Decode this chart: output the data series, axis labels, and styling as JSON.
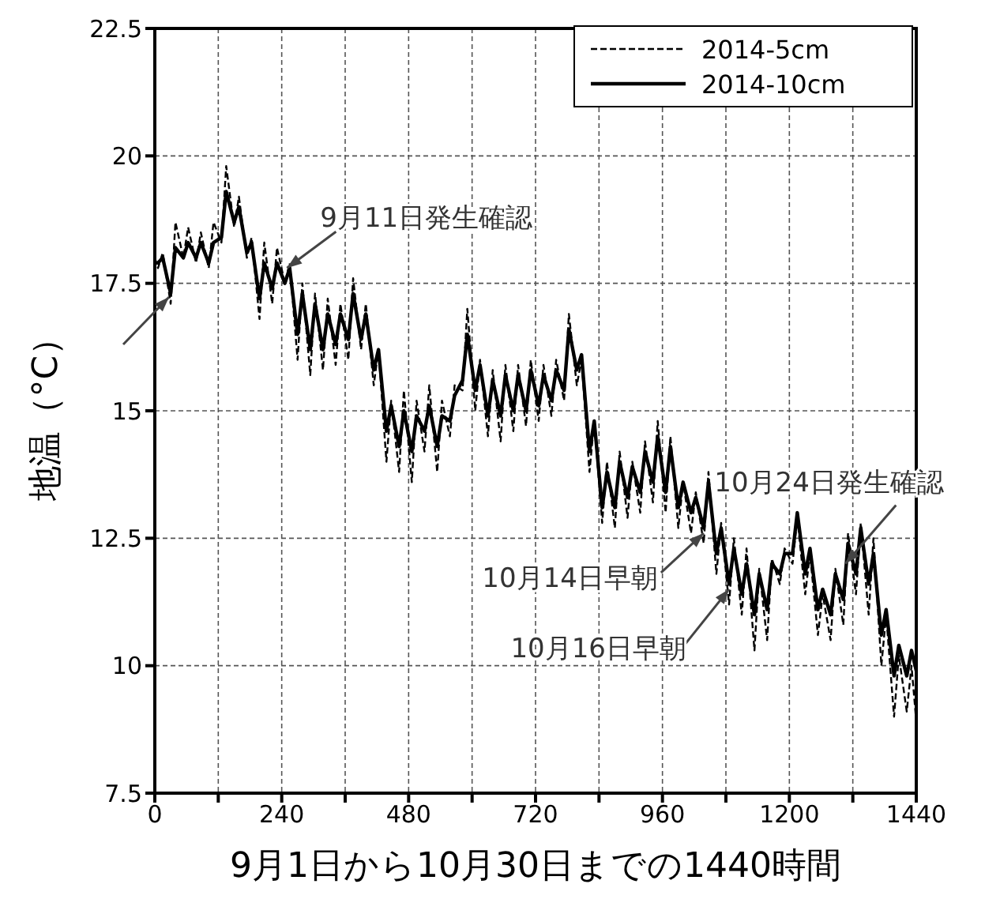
{
  "chart_data": {
    "type": "line",
    "xlabel": "9月1日から10月30日までの1440時間",
    "ylabel": "地温（°C）",
    "x": [
      0,
      6,
      15,
      30,
      39,
      54,
      63,
      78,
      87,
      102,
      111,
      126,
      135,
      150,
      159,
      174,
      183,
      198,
      207,
      222,
      231,
      246,
      255,
      270,
      279,
      294,
      303,
      318,
      327,
      342,
      351,
      366,
      375,
      390,
      399,
      414,
      423,
      438,
      447,
      462,
      471,
      486,
      495,
      510,
      519,
      534,
      543,
      558,
      567,
      582,
      591,
      606,
      615,
      630,
      639,
      654,
      663,
      678,
      687,
      702,
      711,
      726,
      735,
      750,
      759,
      774,
      783,
      798,
      807,
      822,
      831,
      846,
      855,
      870,
      879,
      894,
      903,
      918,
      927,
      942,
      951,
      966,
      975,
      990,
      999,
      1014,
      1023,
      1038,
      1047,
      1062,
      1071,
      1086,
      1095,
      1110,
      1119,
      1134,
      1143,
      1158,
      1167,
      1182,
      1191,
      1206,
      1215,
      1230,
      1239,
      1254,
      1263,
      1278,
      1287,
      1302,
      1311,
      1326,
      1335,
      1350,
      1359,
      1374,
      1383,
      1398,
      1407,
      1422,
      1431,
      1440
    ],
    "series": [
      {
        "name": "2014-5cm",
        "color": "#000000",
        "line_style": "dashed",
        "values": [
          18.0,
          17.8,
          18.1,
          17.1,
          18.7,
          18.0,
          18.6,
          17.9,
          18.5,
          17.8,
          18.7,
          18.3,
          19.8,
          18.6,
          19.2,
          18.0,
          18.4,
          16.8,
          18.3,
          17.1,
          18.2,
          17.5,
          17.9,
          16.0,
          17.5,
          15.7,
          17.3,
          15.8,
          17.2,
          15.9,
          17.1,
          16.0,
          17.6,
          16.2,
          17.1,
          15.5,
          16.2,
          14.0,
          15.2,
          13.8,
          15.4,
          13.6,
          15.2,
          14.2,
          15.5,
          13.8,
          15.2,
          14.5,
          15.5,
          15.4,
          17.0,
          15.0,
          16.0,
          14.5,
          15.8,
          14.4,
          15.9,
          14.6,
          15.9,
          14.7,
          16.0,
          14.8,
          15.9,
          14.9,
          16.0,
          15.2,
          16.9,
          15.5,
          16.0,
          13.8,
          14.8,
          12.8,
          14.0,
          12.7,
          14.2,
          12.9,
          14.0,
          13.0,
          14.4,
          13.2,
          14.8,
          13.0,
          14.5,
          12.7,
          13.6,
          12.6,
          13.4,
          12.4,
          13.8,
          11.8,
          12.8,
          11.2,
          12.5,
          11.0,
          12.3,
          10.3,
          11.9,
          10.5,
          12.1,
          11.6,
          12.3,
          12.0,
          12.9,
          11.4,
          12.2,
          10.6,
          11.4,
          10.5,
          11.9,
          10.8,
          12.6,
          11.4,
          12.8,
          11.0,
          12.5,
          10.0,
          11.0,
          9.0,
          10.2,
          9.1,
          10.0,
          8.9
        ]
      },
      {
        "name": "2014-10cm",
        "color": "#000000",
        "line_style": "solid",
        "values": [
          17.9,
          17.9,
          18.0,
          17.3,
          18.2,
          18.0,
          18.3,
          18.0,
          18.3,
          17.9,
          18.3,
          18.4,
          19.3,
          18.7,
          19.0,
          18.1,
          18.3,
          17.2,
          17.9,
          17.4,
          17.9,
          17.5,
          17.8,
          16.5,
          17.3,
          16.2,
          17.1,
          16.2,
          16.9,
          16.3,
          16.9,
          16.4,
          17.3,
          16.4,
          16.9,
          15.8,
          16.2,
          14.6,
          15.1,
          14.3,
          15.0,
          14.2,
          14.9,
          14.6,
          15.1,
          14.3,
          14.9,
          14.8,
          15.3,
          15.6,
          16.5,
          15.4,
          15.9,
          14.9,
          15.6,
          14.9,
          15.7,
          15.0,
          15.7,
          15.0,
          15.8,
          15.1,
          15.7,
          15.2,
          15.8,
          15.4,
          16.6,
          15.8,
          16.1,
          14.2,
          14.8,
          13.1,
          13.8,
          13.1,
          14.0,
          13.3,
          13.9,
          13.4,
          14.2,
          13.6,
          14.5,
          13.4,
          14.3,
          13.1,
          13.6,
          13.0,
          13.3,
          12.7,
          13.6,
          12.2,
          12.7,
          11.6,
          12.3,
          11.4,
          12.0,
          11.0,
          11.8,
          11.1,
          12.0,
          11.8,
          12.2,
          12.2,
          13.0,
          11.8,
          12.3,
          11.1,
          11.5,
          11.0,
          11.8,
          11.3,
          12.4,
          11.8,
          12.7,
          11.6,
          12.2,
          10.6,
          11.1,
          9.8,
          10.4,
          9.8,
          10.3,
          9.9
        ]
      }
    ],
    "xlim": [
      0,
      1440
    ],
    "xticks": [
      0,
      {
        "value": 120,
        "label": null
      },
      240,
      {
        "value": 360,
        "label": null
      },
      480,
      {
        "value": 600,
        "label": null
      },
      720,
      {
        "value": 840,
        "label": null
      },
      960,
      {
        "value": 1080,
        "label": null
      },
      1200,
      {
        "value": 1320,
        "label": null
      },
      1440
    ],
    "ylim": [
      7.5,
      22.5
    ],
    "yticks": [
      7.5,
      10,
      12.5,
      15,
      17.5,
      20,
      22.5
    ],
    "grid": true,
    "legend": "top right",
    "marker": "none",
    "annotations": [
      {
        "text": "9月11日発生確認",
        "x": 250,
        "y": 17.8
      },
      {
        "text": "10月14日早朝",
        "x": 1038,
        "y": 12.6
      },
      {
        "text": "10月16日早朝",
        "x": 1086,
        "y": 11.5
      },
      {
        "text": "10月24日発生確認",
        "x": 1306,
        "y": 12.0
      }
    ]
  }
}
